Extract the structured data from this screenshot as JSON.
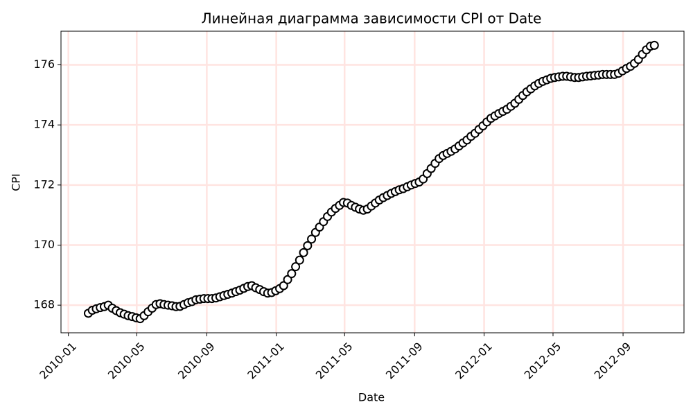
{
  "chart_data": {
    "type": "line",
    "title": "Линейная диаграмма зависимости CPI от Date",
    "x_label": "Date",
    "y_label": "CPI",
    "x": [
      "2010-02-05",
      "2010-02-12",
      "2010-02-19",
      "2010-02-26",
      "2010-03-05",
      "2010-03-12",
      "2010-03-19",
      "2010-03-26",
      "2010-04-02",
      "2010-04-09",
      "2010-04-16",
      "2010-04-23",
      "2010-04-30",
      "2010-05-07",
      "2010-05-14",
      "2010-05-21",
      "2010-05-28",
      "2010-06-04",
      "2010-06-11",
      "2010-06-18",
      "2010-06-25",
      "2010-07-02",
      "2010-07-09",
      "2010-07-16",
      "2010-07-23",
      "2010-07-30",
      "2010-08-06",
      "2010-08-13",
      "2010-08-20",
      "2010-08-27",
      "2010-09-03",
      "2010-09-10",
      "2010-09-17",
      "2010-09-24",
      "2010-10-01",
      "2010-10-08",
      "2010-10-15",
      "2010-10-22",
      "2010-10-29",
      "2010-11-05",
      "2010-11-12",
      "2010-11-19",
      "2010-11-26",
      "2010-12-03",
      "2010-12-10",
      "2010-12-17",
      "2010-12-24",
      "2010-12-31",
      "2011-01-07",
      "2011-01-14",
      "2011-01-21",
      "2011-01-28",
      "2011-02-04",
      "2011-02-11",
      "2011-02-18",
      "2011-02-25",
      "2011-03-04",
      "2011-03-11",
      "2011-03-18",
      "2011-03-25",
      "2011-04-01",
      "2011-04-08",
      "2011-04-15",
      "2011-04-22",
      "2011-04-29",
      "2011-05-06",
      "2011-05-13",
      "2011-05-20",
      "2011-05-27",
      "2011-06-03",
      "2011-06-10",
      "2011-06-17",
      "2011-06-24",
      "2011-07-01",
      "2011-07-08",
      "2011-07-15",
      "2011-07-22",
      "2011-07-29",
      "2011-08-05",
      "2011-08-12",
      "2011-08-19",
      "2011-08-26",
      "2011-09-02",
      "2011-09-09",
      "2011-09-16",
      "2011-09-23",
      "2011-09-30",
      "2011-10-07",
      "2011-10-14",
      "2011-10-21",
      "2011-10-28",
      "2011-11-04",
      "2011-11-11",
      "2011-11-18",
      "2011-11-25",
      "2011-12-02",
      "2011-12-09",
      "2011-12-16",
      "2011-12-23",
      "2011-12-30",
      "2012-01-06",
      "2012-01-13",
      "2012-01-20",
      "2012-01-27",
      "2012-02-03",
      "2012-02-10",
      "2012-02-17",
      "2012-02-24",
      "2012-03-02",
      "2012-03-09",
      "2012-03-16",
      "2012-03-23",
      "2012-03-30",
      "2012-04-06",
      "2012-04-13",
      "2012-04-20",
      "2012-04-27",
      "2012-05-04",
      "2012-05-11",
      "2012-05-18",
      "2012-05-25",
      "2012-06-01",
      "2012-06-08",
      "2012-06-15",
      "2012-06-22",
      "2012-06-29",
      "2012-07-06",
      "2012-07-13",
      "2012-07-20",
      "2012-07-27",
      "2012-08-03",
      "2012-08-10",
      "2012-08-17",
      "2012-08-24",
      "2012-08-31",
      "2012-09-07",
      "2012-09-14",
      "2012-09-21",
      "2012-09-28",
      "2012-10-05",
      "2012-10-12",
      "2012-10-19",
      "2012-10-26"
    ],
    "series": [
      {
        "color": "#000000",
        "marker_fill": "#ffffff",
        "values": [
          167.73,
          167.83,
          167.88,
          167.92,
          167.95,
          168.0,
          167.9,
          167.82,
          167.75,
          167.7,
          167.65,
          167.62,
          167.58,
          167.55,
          167.65,
          167.78,
          167.9,
          168.02,
          168.05,
          168.02,
          168.0,
          167.98,
          167.95,
          167.96,
          168.02,
          168.08,
          168.12,
          168.18,
          168.2,
          168.22,
          168.22,
          168.22,
          168.24,
          168.28,
          168.32,
          168.36,
          168.4,
          168.45,
          168.5,
          168.56,
          168.62,
          168.65,
          168.58,
          168.52,
          168.45,
          168.4,
          168.42,
          168.48,
          168.55,
          168.65,
          168.85,
          169.05,
          169.28,
          169.5,
          169.75,
          169.98,
          170.2,
          170.42,
          170.6,
          170.78,
          170.95,
          171.1,
          171.22,
          171.32,
          171.42,
          171.4,
          171.32,
          171.26,
          171.2,
          171.16,
          171.2,
          171.3,
          171.4,
          171.5,
          171.58,
          171.65,
          171.72,
          171.78,
          171.84,
          171.88,
          171.94,
          172.0,
          172.05,
          172.1,
          172.2,
          172.38,
          172.55,
          172.72,
          172.88,
          172.98,
          173.05,
          173.12,
          173.2,
          173.3,
          173.4,
          173.5,
          173.62,
          173.72,
          173.85,
          173.97,
          174.1,
          174.22,
          174.3,
          174.38,
          174.45,
          174.52,
          174.62,
          174.72,
          174.85,
          174.98,
          175.1,
          175.2,
          175.3,
          175.38,
          175.45,
          175.5,
          175.55,
          175.58,
          175.6,
          175.62,
          175.62,
          175.6,
          175.58,
          175.58,
          175.6,
          175.62,
          175.63,
          175.65,
          175.66,
          175.68,
          175.68,
          175.68,
          175.68,
          175.72,
          175.8,
          175.88,
          175.95,
          176.05,
          176.18,
          176.35,
          176.5,
          176.62,
          176.65
        ]
      }
    ],
    "xlim": [
      "2009-12-19",
      "2012-12-17"
    ],
    "xticks": [
      "2010-01",
      "2010-05",
      "2010-09",
      "2011-01",
      "2011-05",
      "2011-09",
      "2012-01",
      "2012-05",
      "2012-09"
    ],
    "ylim": [
      167.08,
      177.12
    ],
    "yticks": [
      168,
      170,
      172,
      174,
      176
    ],
    "grid": true,
    "grid_color": "#ffe4e1"
  }
}
